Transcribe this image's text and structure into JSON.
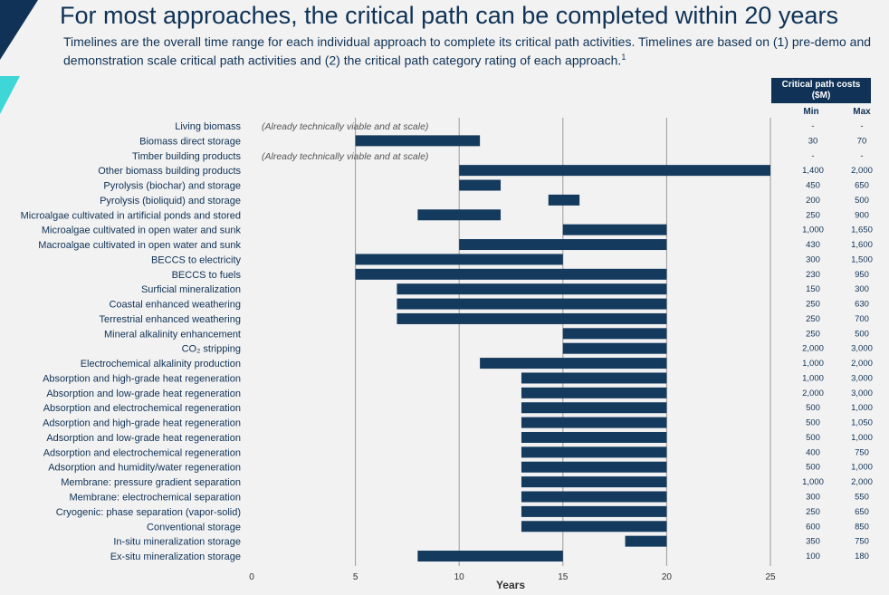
{
  "header": {
    "title": "For most approaches, the critical path can be completed within 20 years",
    "subtitle": "Timelines are the overall time range for each individual approach to complete its critical path activities. Timelines are based on (1) pre-demo and demonstration scale critical path activities and (2) the critical path category rating of each approach.",
    "footnote_marker": "1"
  },
  "cost_table": {
    "header": "Critical path costs ($M)",
    "min_label": "Min",
    "max_label": "Max"
  },
  "colors": {
    "bar": "#143a5e",
    "gridline": "#9a9a9a",
    "text": "#0f3256",
    "accent_teal": "#3ed6d6",
    "background": "#f2f2f2"
  },
  "chart_data": {
    "type": "bar",
    "orientation": "horizontal-floating",
    "xlabel": "Years",
    "xlim": [
      0,
      25
    ],
    "xticks": [
      0,
      5,
      10,
      15,
      20,
      25
    ],
    "rows": [
      {
        "label": "Living biomass",
        "start": null,
        "end": null,
        "note": "(Already technically viable and at scale)",
        "cost_min": "-",
        "cost_max": "-"
      },
      {
        "label": "Biomass direct storage",
        "start": 5,
        "end": 11,
        "note": "",
        "cost_min": "30",
        "cost_max": "70"
      },
      {
        "label": "Timber building products",
        "start": null,
        "end": null,
        "note": "(Already technically viable and at scale)",
        "cost_min": "-",
        "cost_max": "-"
      },
      {
        "label": "Other biomass building products",
        "start": 10,
        "end": 25,
        "note": "",
        "cost_min": "1,400",
        "cost_max": "2,000"
      },
      {
        "label": "Pyrolysis (biochar) and storage",
        "start": 10,
        "end": 12,
        "note": "",
        "cost_min": "450",
        "cost_max": "650"
      },
      {
        "label": "Pyrolysis (bioliquid) and storage",
        "start": 14.3,
        "end": 15.8,
        "note": "",
        "cost_min": "200",
        "cost_max": "500"
      },
      {
        "label": "Microalgae cultivated in artificial ponds and stored",
        "start": 8,
        "end": 12,
        "note": "",
        "cost_min": "250",
        "cost_max": "900"
      },
      {
        "label": "Microalgae cultivated in open water and sunk",
        "start": 15,
        "end": 20,
        "note": "",
        "cost_min": "1,000",
        "cost_max": "1,650"
      },
      {
        "label": "Macroalgae cultivated in open water and sunk",
        "start": 10,
        "end": 20,
        "note": "",
        "cost_min": "430",
        "cost_max": "1,600"
      },
      {
        "label": "BECCS to electricity",
        "start": 5,
        "end": 15,
        "note": "",
        "cost_min": "300",
        "cost_max": "1,500"
      },
      {
        "label": "BECCS to fuels",
        "start": 5,
        "end": 20,
        "note": "",
        "cost_min": "230",
        "cost_max": "950"
      },
      {
        "label": "Surficial mineralization",
        "start": 7,
        "end": 20,
        "note": "",
        "cost_min": "150",
        "cost_max": "300"
      },
      {
        "label": "Coastal enhanced weathering",
        "start": 7,
        "end": 20,
        "note": "",
        "cost_min": "250",
        "cost_max": "630"
      },
      {
        "label": "Terrestrial enhanced weathering",
        "start": 7,
        "end": 20,
        "note": "",
        "cost_min": "250",
        "cost_max": "700"
      },
      {
        "label": "Mineral alkalinity enhancement",
        "start": 15,
        "end": 20,
        "note": "",
        "cost_min": "250",
        "cost_max": "500"
      },
      {
        "label": "CO₂ stripping",
        "start": 15,
        "end": 20,
        "note": "",
        "cost_min": "2,000",
        "cost_max": "3,000"
      },
      {
        "label": "Electrochemical alkalinity production",
        "start": 11,
        "end": 20,
        "note": "",
        "cost_min": "1,000",
        "cost_max": "2,000"
      },
      {
        "label": "Absorption and high-grade heat regeneration",
        "start": 13,
        "end": 20,
        "note": "",
        "cost_min": "1,000",
        "cost_max": "3,000"
      },
      {
        "label": "Absorption and low-grade heat regeneration",
        "start": 13,
        "end": 20,
        "note": "",
        "cost_min": "2,000",
        "cost_max": "3,000"
      },
      {
        "label": "Absorption and electrochemical regeneration",
        "start": 13,
        "end": 20,
        "note": "",
        "cost_min": "500",
        "cost_max": "1,000"
      },
      {
        "label": "Adsorption and high-grade heat regeneration",
        "start": 13,
        "end": 20,
        "note": "",
        "cost_min": "500",
        "cost_max": "1,050"
      },
      {
        "label": "Adsorption and low-grade heat regeneration",
        "start": 13,
        "end": 20,
        "note": "",
        "cost_min": "500",
        "cost_max": "1,000"
      },
      {
        "label": "Adsorption and electrochemical regeneration",
        "start": 13,
        "end": 20,
        "note": "",
        "cost_min": "400",
        "cost_max": "750"
      },
      {
        "label": "Adsorption and humidity/water regeneration",
        "start": 13,
        "end": 20,
        "note": "",
        "cost_min": "500",
        "cost_max": "1,000"
      },
      {
        "label": "Membrane: pressure gradient separation",
        "start": 13,
        "end": 20,
        "note": "",
        "cost_min": "1,000",
        "cost_max": "2,000"
      },
      {
        "label": "Membrane: electrochemical separation",
        "start": 13,
        "end": 20,
        "note": "",
        "cost_min": "300",
        "cost_max": "550"
      },
      {
        "label": "Cryogenic: phase separation (vapor-solid)",
        "start": 13,
        "end": 20,
        "note": "",
        "cost_min": "250",
        "cost_max": "650"
      },
      {
        "label": "Conventional storage",
        "start": 13,
        "end": 20,
        "note": "",
        "cost_min": "600",
        "cost_max": "850"
      },
      {
        "label": "In-situ mineralization storage",
        "start": 18,
        "end": 20,
        "note": "",
        "cost_min": "350",
        "cost_max": "750"
      },
      {
        "label": "Ex-situ mineralization storage",
        "start": 8,
        "end": 15,
        "note": "",
        "cost_min": "100",
        "cost_max": "180"
      }
    ]
  }
}
